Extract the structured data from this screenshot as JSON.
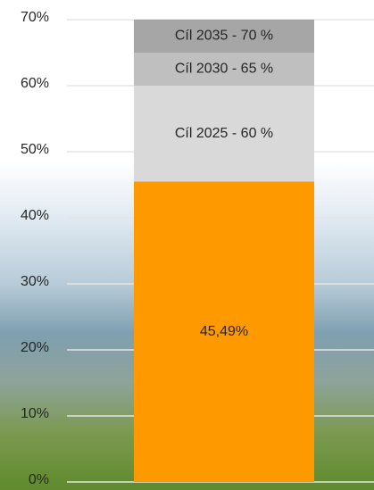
{
  "chart_data": {
    "type": "stacked_bar",
    "categories": [
      null
    ],
    "series": [
      {
        "name": null,
        "color": "#ff9900",
        "values": [
          45.49
        ],
        "value_labels": [
          "45,49%"
        ]
      },
      {
        "name": "Cíl 2025 - 60 %",
        "color": "#d9d9d9",
        "values": [
          14.51
        ]
      },
      {
        "name": "Cíl 2030 - 65 %",
        "color": "#bfbfbf",
        "values": [
          5
        ]
      },
      {
        "name": "Cíl 2035 - 70 %",
        "color": "#a6a6a6",
        "values": [
          5
        ]
      }
    ],
    "ylim": [
      0,
      70
    ],
    "yticks": [
      {
        "value": 0,
        "label": "0%"
      },
      {
        "value": 10,
        "label": "10%"
      },
      {
        "value": 20,
        "label": "20%"
      },
      {
        "value": 30,
        "label": "30%"
      },
      {
        "value": 40,
        "label": "40%"
      },
      {
        "value": 50,
        "label": "50%"
      },
      {
        "value": 60,
        "label": "60%"
      },
      {
        "value": 70,
        "label": "70%"
      }
    ],
    "grid": true
  }
}
